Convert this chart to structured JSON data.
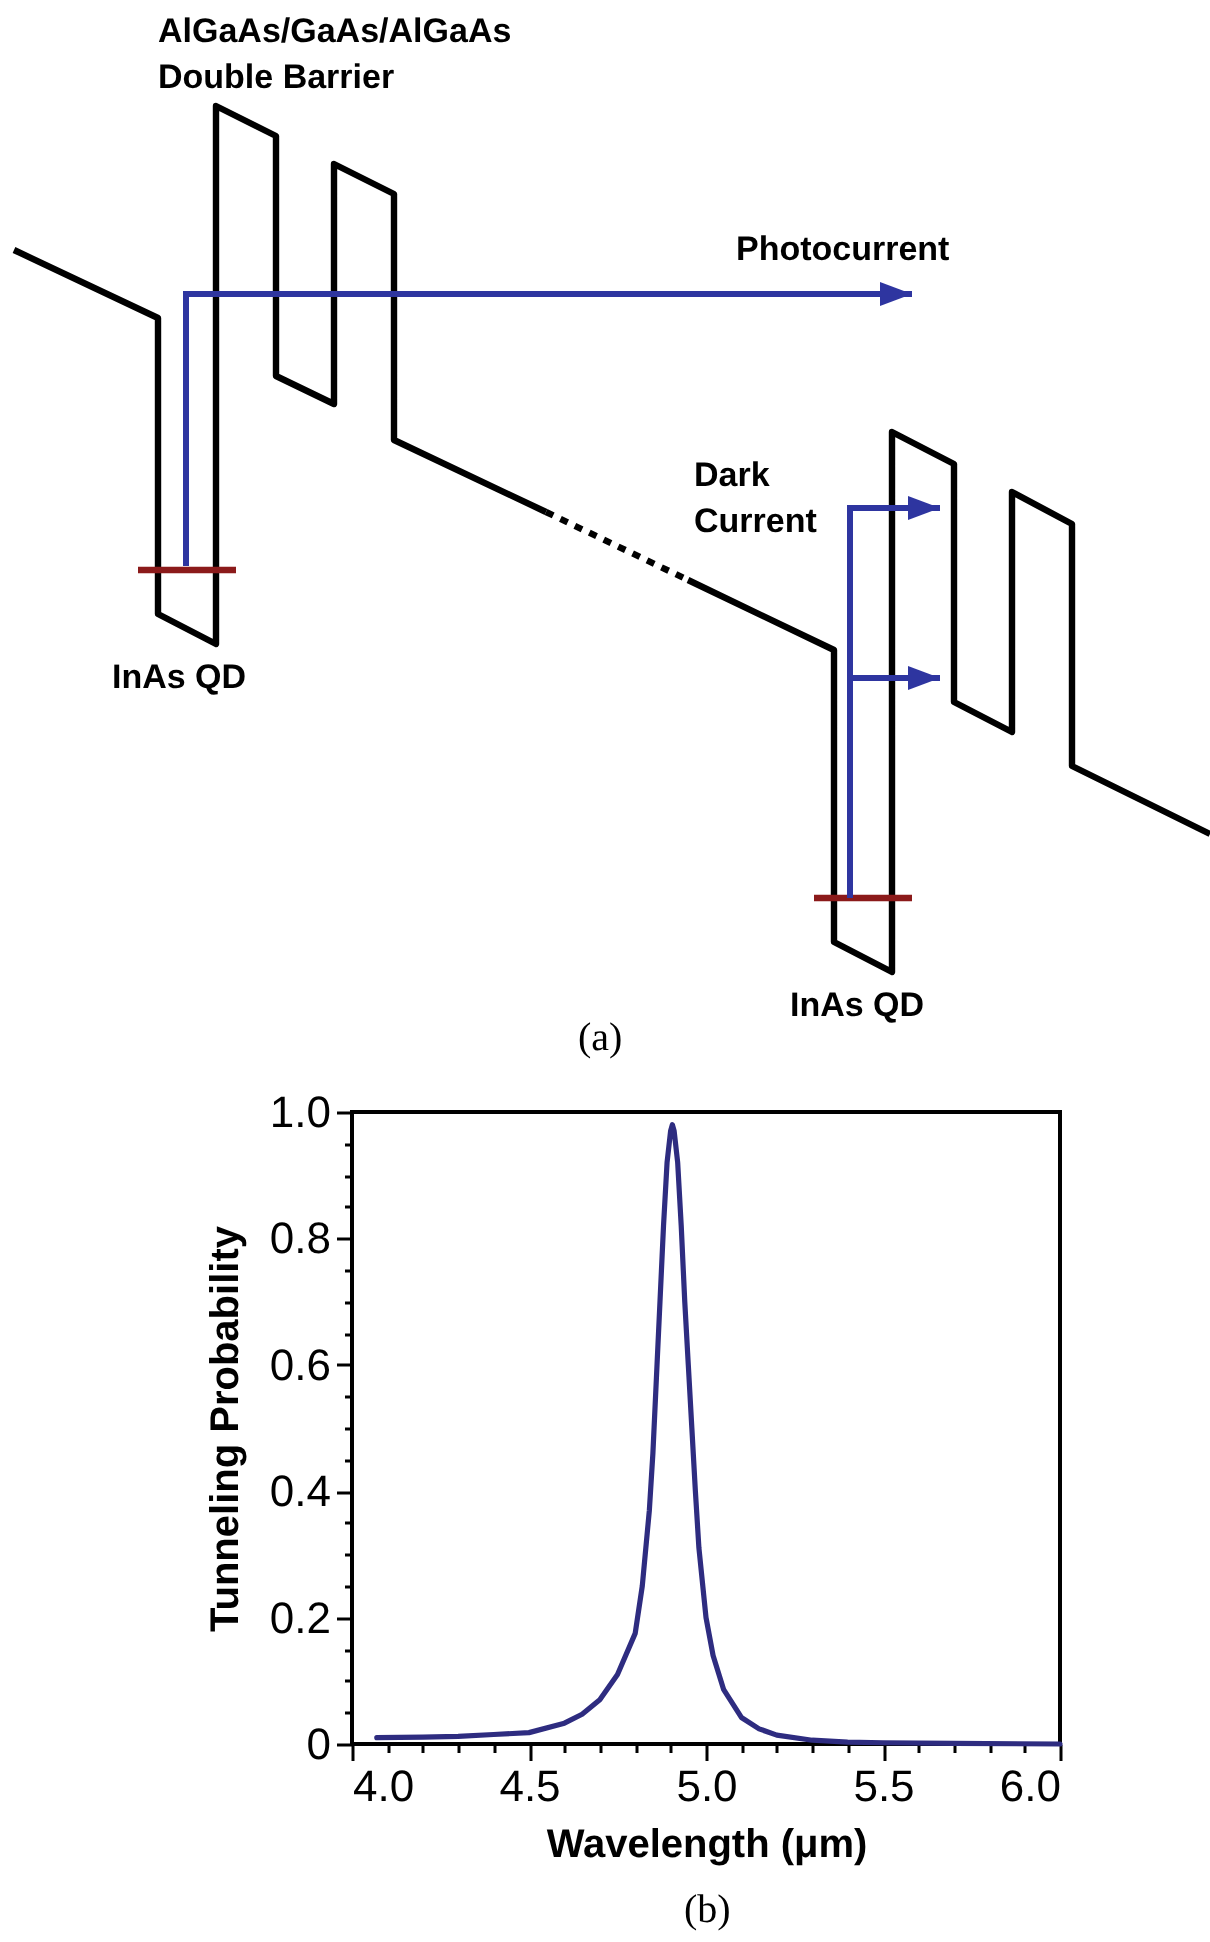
{
  "chart_data": [
    {
      "type": "other",
      "annotations": [
        "AlGaAs/GaAs/AlGaAs Double Barrier",
        "Photocurrent",
        "Dark Current",
        "InAs QD",
        "InAs QD",
        "(a)"
      ]
    },
    {
      "type": "line",
      "xlabel": "Wavelength (μm)",
      "ylabel": "Tunneling Probability",
      "color": "#2e2c80",
      "line_style": "solid",
      "marker": "none",
      "grid": false,
      "x": [
        4.07,
        4.2,
        4.3,
        4.4,
        4.5,
        4.6,
        4.65,
        4.7,
        4.75,
        4.8,
        4.82,
        4.84,
        4.85,
        4.86,
        4.87,
        4.88,
        4.89,
        4.9,
        4.905,
        4.91,
        4.92,
        4.93,
        4.94,
        4.95,
        4.96,
        4.97,
        4.98,
        5.0,
        5.02,
        5.05,
        5.1,
        5.15,
        5.2,
        5.3,
        5.4,
        5.5,
        5.7,
        6.0
      ],
      "values": [
        0.01,
        0.011,
        0.012,
        0.015,
        0.018,
        0.033,
        0.047,
        0.07,
        0.11,
        0.175,
        0.25,
        0.37,
        0.46,
        0.58,
        0.7,
        0.82,
        0.92,
        0.97,
        0.98,
        0.97,
        0.92,
        0.82,
        0.7,
        0.6,
        0.5,
        0.4,
        0.31,
        0.2,
        0.14,
        0.086,
        0.042,
        0.024,
        0.014,
        0.006,
        0.003,
        0.002,
        0.001,
        0
      ],
      "xlim": [
        4,
        6
      ],
      "ylim": [
        0,
        1
      ],
      "xticks": [
        {
          "value": 4,
          "label": "4.0"
        },
        {
          "value": 4.1,
          "label": null
        },
        {
          "value": 4.2,
          "label": null
        },
        {
          "value": 4.3,
          "label": null
        },
        {
          "value": 4.4,
          "label": null
        },
        4.5,
        {
          "value": 4.6,
          "label": null
        },
        {
          "value": 4.7,
          "label": null
        },
        {
          "value": 4.8,
          "label": null
        },
        {
          "value": 4.9,
          "label": null
        },
        {
          "value": 5,
          "label": "5.0"
        },
        {
          "value": 5.1,
          "label": null
        },
        {
          "value": 5.2,
          "label": null
        },
        {
          "value": 5.3,
          "label": null
        },
        {
          "value": 5.4,
          "label": null
        },
        5.5,
        {
          "value": 5.6,
          "label": null
        },
        {
          "value": 5.7,
          "label": null
        },
        {
          "value": 5.8,
          "label": null
        },
        {
          "value": 5.9,
          "label": null
        },
        {
          "value": 6,
          "label": "6.0"
        }
      ],
      "yticks": [
        0,
        {
          "value": 0.05,
          "label": null
        },
        {
          "value": 0.1,
          "label": null
        },
        {
          "value": 0.15,
          "label": null
        },
        0.2,
        {
          "value": 0.25,
          "label": null
        },
        {
          "value": 0.3,
          "label": null
        },
        {
          "value": 0.35,
          "label": null
        },
        0.4,
        {
          "value": 0.45,
          "label": null
        },
        {
          "value": 0.5,
          "label": null
        },
        {
          "value": 0.55,
          "label": null
        },
        0.6,
        {
          "value": 0.65,
          "label": null
        },
        {
          "value": 0.7,
          "label": null
        },
        {
          "value": 0.75,
          "label": null
        },
        0.8,
        {
          "value": 0.85,
          "label": null
        },
        {
          "value": 0.9,
          "label": null
        },
        {
          "value": 0.95,
          "label": null
        },
        {
          "value": 1,
          "label": "1.0"
        }
      ],
      "annotations": [
        "(b)"
      ]
    }
  ]
}
